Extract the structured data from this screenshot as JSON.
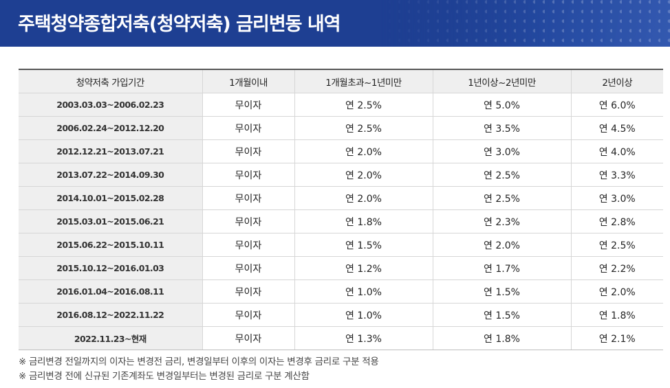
{
  "header": {
    "title": "주택청약종합저축(청약저축) 금리변동 내역"
  },
  "table": {
    "columns": [
      "청약저축 가입기간",
      "1개월이내",
      "1개월초과~1년미만",
      "1년이상~2년미만",
      "2년이상"
    ],
    "rows": [
      [
        "2003.03.03~2006.02.23",
        "무이자",
        "연 2.5%",
        "연 5.0%",
        "연 6.0%"
      ],
      [
        "2006.02.24~2012.12.20",
        "무이자",
        "연 2.5%",
        "연 3.5%",
        "연 4.5%"
      ],
      [
        "2012.12.21~2013.07.21",
        "무이자",
        "연 2.0%",
        "연 3.0%",
        "연 4.0%"
      ],
      [
        "2013.07.22~2014.09.30",
        "무이자",
        "연 2.0%",
        "연 2.5%",
        "연 3.3%"
      ],
      [
        "2014.10.01~2015.02.28",
        "무이자",
        "연 2.0%",
        "연 2.5%",
        "연 3.0%"
      ],
      [
        "2015.03.01~2015.06.21",
        "무이자",
        "연 1.8%",
        "연 2.3%",
        "연 2.8%"
      ],
      [
        "2015.06.22~2015.10.11",
        "무이자",
        "연 1.5%",
        "연 2.0%",
        "연 2.5%"
      ],
      [
        "2015.10.12~2016.01.03",
        "무이자",
        "연 1.2%",
        "연 1.7%",
        "연 2.2%"
      ],
      [
        "2016.01.04~2016.08.11",
        "무이자",
        "연 1.0%",
        "연 1.5%",
        "연 2.0%"
      ],
      [
        "2016.08.12~2022.11.22",
        "무이자",
        "연 1.0%",
        "연 1.5%",
        "연 1.8%"
      ],
      [
        "2022.11.23~현재",
        "무이자",
        "연 1.3%",
        "연 1.8%",
        "연 2.1%"
      ]
    ]
  },
  "notes": [
    "※ 금리변경 전일까지의 이자는 변경전 금리, 변경일부터 이후의 이자는 변경후 금리로 구분 적용",
    "※ 금리변경 전에 신규된 기존계좌도 변경일부터는 변경된 금리로 구분 계산함"
  ],
  "colors": {
    "header_bg": "#1e3f92",
    "header_text": "#ffffff",
    "cell_label_bg": "#efefef",
    "border": "#d6d6d6"
  }
}
